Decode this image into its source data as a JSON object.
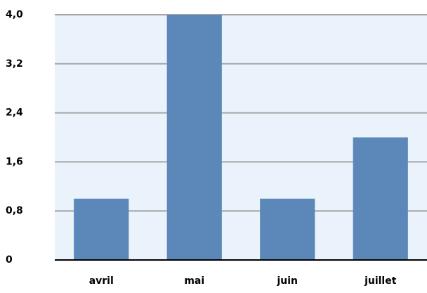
{
  "chart_data": {
    "type": "bar",
    "categories": [
      "avril",
      "mai",
      "juin",
      "juillet"
    ],
    "values": [
      1,
      4,
      1,
      2
    ],
    "color": "#5b87b9",
    "ylim": [
      0,
      4
    ],
    "yticks": [
      0,
      {
        "value": 0.8,
        "label": "0,8"
      },
      {
        "value": 1.6,
        "label": "1,6"
      },
      {
        "value": 2.4,
        "label": "2,4"
      },
      {
        "value": 3.2,
        "label": "3,2"
      },
      {
        "value": 4,
        "label": "4,0"
      }
    ],
    "grid": true
  }
}
